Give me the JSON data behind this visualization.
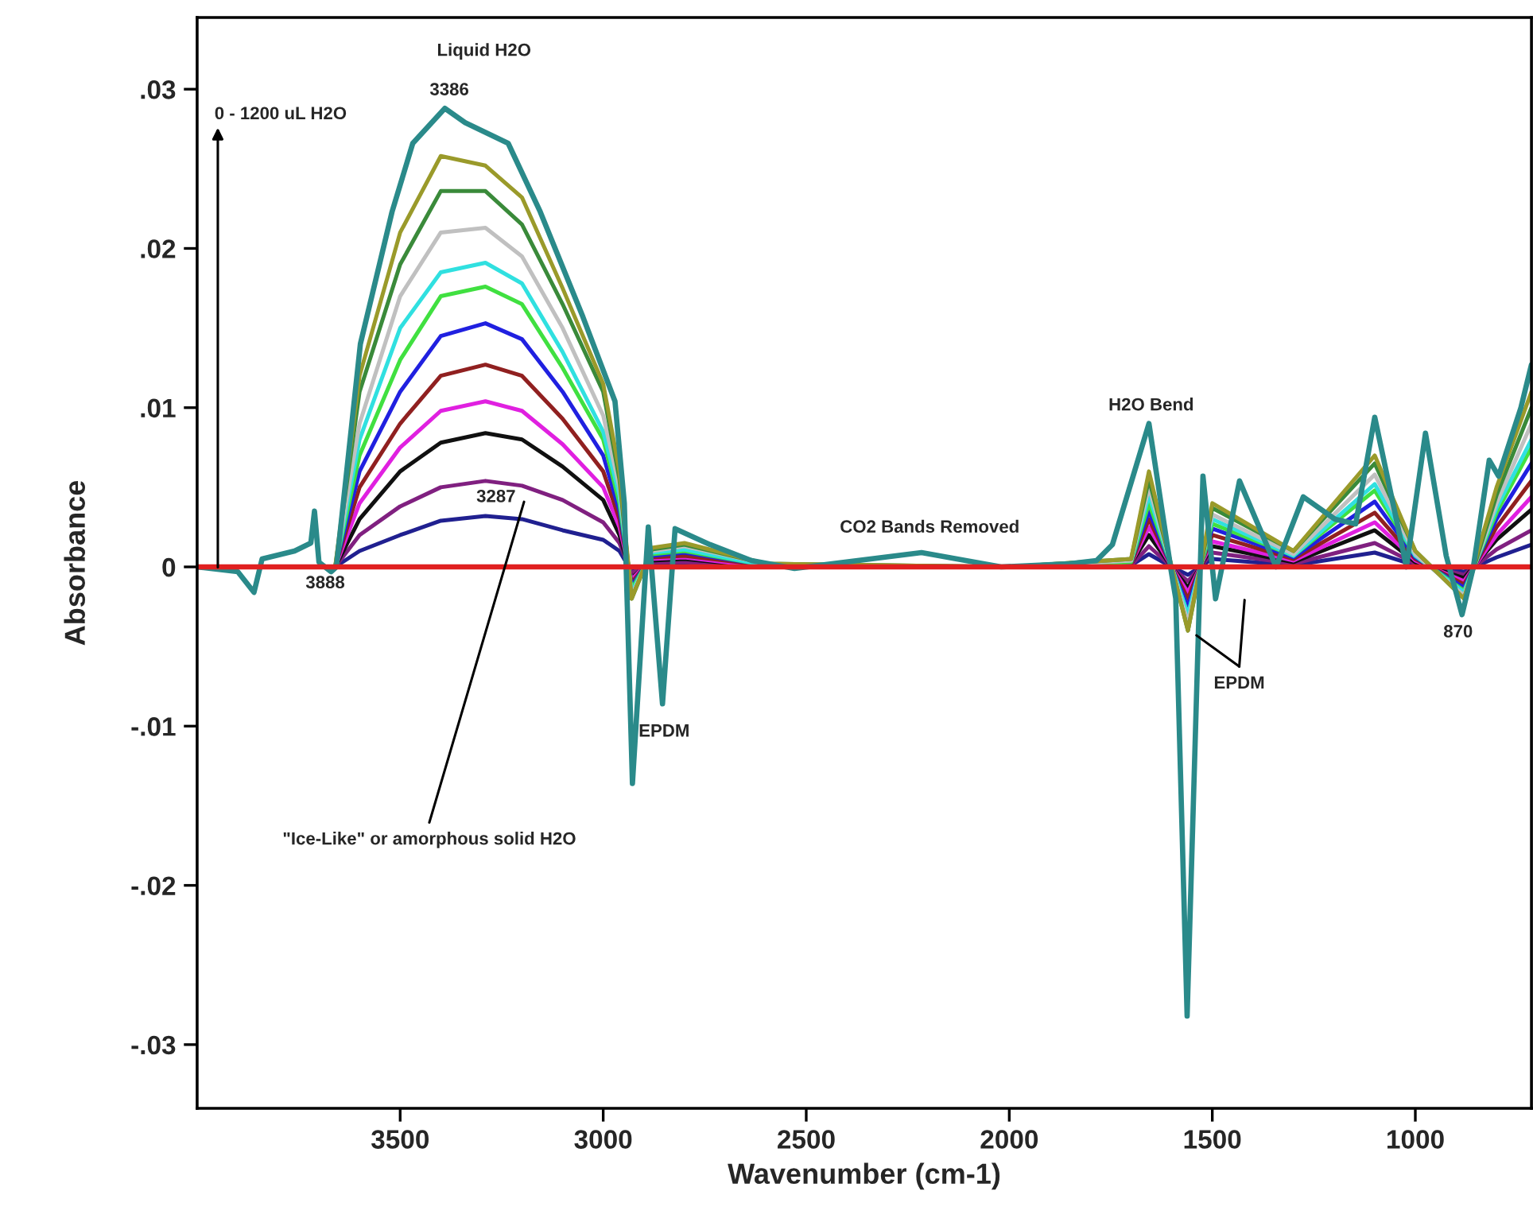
{
  "chart_data": {
    "type": "line",
    "xlabel": "Wavenumber (cm-1)",
    "ylabel": "Absorbance",
    "xlim": [
      4000,
      714
    ],
    "ylim": [
      -0.034,
      0.0345
    ],
    "xticks": [
      3500,
      3000,
      2500,
      2000,
      1500,
      1000
    ],
    "yticks": [
      {
        "value": -0.03,
        "label": "-.03"
      },
      {
        "value": -0.02,
        "label": "-.02"
      },
      {
        "value": -0.01,
        "label": "-.01"
      },
      {
        "value": 0,
        "label": "0"
      },
      {
        "value": 0.01,
        "label": ".01"
      },
      {
        "value": 0.02,
        "label": ".02"
      },
      {
        "value": 0.03,
        "label": ".03"
      }
    ],
    "grid": false,
    "legend": false,
    "marker": "none",
    "line_style": "solid",
    "x": [
      3660,
      3600,
      3500,
      3400,
      3290,
      3200,
      3100,
      3000,
      2960,
      2930,
      2880,
      2800,
      2600,
      2000,
      1700,
      1656,
      1600,
      1560,
      1500,
      1300,
      1100,
      1000,
      880,
      800,
      714
    ],
    "series": [
      {
        "color": "#202090",
        "values": [
          0,
          0.001,
          0.002,
          0.0029,
          0.0032,
          0.003,
          0.0023,
          0.0017,
          0.001,
          -0.0003,
          0.0002,
          0.0002,
          0,
          0,
          0.0001,
          0.0008,
          0,
          -0.0005,
          0.0005,
          0.0001,
          0.0009,
          0.0001,
          -0.0003,
          0.0006,
          0.0014
        ]
      },
      {
        "color": "#802080",
        "values": [
          0,
          0.002,
          0.0038,
          0.005,
          0.0054,
          0.0051,
          0.0042,
          0.0028,
          0.0015,
          -0.0004,
          0.0003,
          0.0003,
          0,
          0,
          0.0001,
          0.0013,
          0,
          -0.0009,
          0.0009,
          0.0002,
          0.0015,
          0.0002,
          -0.0005,
          0.0011,
          0.0023
        ]
      },
      {
        "color": "#101010",
        "values": [
          0,
          0.003,
          0.006,
          0.0078,
          0.0084,
          0.008,
          0.0063,
          0.0042,
          0.002,
          -0.0007,
          0.0004,
          0.0005,
          0,
          0,
          0.0002,
          0.002,
          0,
          -0.0013,
          0.0013,
          0.0003,
          0.0023,
          0.0003,
          -0.0007,
          0.0017,
          0.0036
        ]
      },
      {
        "color": "#e020e0",
        "values": [
          0,
          0.004,
          0.0075,
          0.0098,
          0.0104,
          0.0098,
          0.0077,
          0.005,
          0.0025,
          -0.0008,
          0.0005,
          0.0006,
          0,
          0,
          0.0002,
          0.0025,
          0,
          -0.0016,
          0.0016,
          0.0004,
          0.0028,
          0.0004,
          -0.0009,
          0.002,
          0.0044
        ]
      },
      {
        "color": "#902020",
        "values": [
          0,
          0.005,
          0.009,
          0.012,
          0.0127,
          0.012,
          0.0093,
          0.006,
          0.003,
          -0.001,
          0.0006,
          0.0007,
          0.0001,
          0,
          0.0002,
          0.003,
          0,
          -0.002,
          0.002,
          0.0005,
          0.0034,
          0.0005,
          -0.0011,
          0.0025,
          0.0054
        ]
      },
      {
        "color": "#2020e0",
        "values": [
          0,
          0.006,
          0.011,
          0.0145,
          0.0153,
          0.0143,
          0.011,
          0.007,
          0.0035,
          -0.0012,
          0.0007,
          0.0009,
          0.0001,
          0,
          0.0003,
          0.0035,
          0,
          -0.0025,
          0.0024,
          0.0006,
          0.0041,
          0.0006,
          -0.0013,
          0.003,
          0.0065
        ]
      },
      {
        "color": "#40e040",
        "values": [
          0,
          0.007,
          0.013,
          0.017,
          0.0176,
          0.0165,
          0.0125,
          0.008,
          0.004,
          -0.0014,
          0.0008,
          0.001,
          0.0001,
          0,
          0.0003,
          0.004,
          0,
          -0.003,
          0.0027,
          0.0007,
          0.0048,
          0.0007,
          -0.0015,
          0.0034,
          0.0075
        ]
      },
      {
        "color": "#30e0e0",
        "values": [
          0,
          0.008,
          0.015,
          0.0185,
          0.0191,
          0.0178,
          0.0135,
          0.0085,
          0.0045,
          -0.0016,
          0.0009,
          0.0011,
          0.0001,
          0,
          0.0004,
          0.0045,
          0,
          -0.003,
          0.003,
          0.0007,
          0.0052,
          0.0007,
          -0.0016,
          0.0037,
          0.008
        ]
      },
      {
        "color": "#c0c0c0",
        "values": [
          0,
          0.009,
          0.017,
          0.021,
          0.0213,
          0.0195,
          0.015,
          0.0095,
          0.005,
          -0.0018,
          0.001,
          0.0013,
          0.0002,
          0,
          0.0004,
          0.005,
          0,
          -0.0035,
          0.0033,
          0.0008,
          0.0058,
          0.0008,
          -0.0018,
          0.004,
          0.009
        ]
      },
      {
        "color": "#3a8a3a",
        "values": [
          0,
          0.011,
          0.019,
          0.0236,
          0.0236,
          0.0215,
          0.0165,
          0.011,
          0.0055,
          -0.002,
          0.0011,
          0.0014,
          0.0002,
          0,
          0.0005,
          0.0055,
          0,
          -0.004,
          0.0037,
          0.001,
          0.0065,
          0.001,
          -0.002,
          0.0045,
          0.01
        ]
      },
      {
        "color": "#9a9a2a",
        "values": [
          0,
          0.012,
          0.021,
          0.0258,
          0.0252,
          0.0232,
          0.0175,
          0.0115,
          0.006,
          -0.002,
          0.0012,
          0.0015,
          0.0002,
          0,
          0.0005,
          0.006,
          0,
          -0.004,
          0.004,
          0.001,
          0.007,
          0.001,
          -0.002,
          0.005,
          0.011
        ]
      },
      {
        "color": "#2a8a8a",
        "x": [
          4000,
          3900,
          3860,
          3840,
          3760,
          3720,
          3711,
          3700,
          3670,
          3657,
          3598,
          3520,
          3469,
          3390,
          3340,
          3234,
          3155,
          3050,
          2971,
          2948,
          2928,
          2889,
          2854,
          2823,
          2737,
          2635,
          2529,
          2216,
          2020,
          1852,
          1785,
          1746,
          1656,
          1601,
          1590,
          1562,
          1523,
          1492,
          1433,
          1343,
          1276,
          1198,
          1147,
          1100,
          1022,
          975,
          924,
          885,
          857,
          818,
          795,
          740,
          714
        ],
        "values": [
          0,
          -0.0003,
          -0.0016,
          0.0005,
          0.001,
          0.0015,
          0.0035,
          0.0003,
          -0.0003,
          0,
          0.014,
          0.0223,
          0.0266,
          0.0288,
          0.0279,
          0.0266,
          0.0223,
          0.0157,
          0.0104,
          0.004,
          -0.0136,
          0.0025,
          -0.0086,
          0.0024,
          0.0014,
          0.0004,
          -0.0001,
          0.0009,
          0,
          0.0002,
          0.0004,
          0.0014,
          0.009,
          -0.0003,
          -0.002,
          -0.0282,
          0.0057,
          -0.002,
          0.0054,
          0,
          0.0044,
          0.003,
          0.0027,
          0.0094,
          0,
          0.0084,
          0.0007,
          -0.003,
          0,
          0.0067,
          0.0057,
          0.01,
          0.0127
        ]
      },
      {
        "color": "#e02020",
        "x": [
          4000,
          714
        ],
        "values": [
          0,
          0
        ]
      }
    ],
    "annotations": [
      "Liquid H2O",
      "3386",
      "0 - 1200 uL H2O",
      "3888",
      "3287",
      "\"Ice-Like\" or amorphous solid H2O",
      "EPDM",
      "CO2 Bands Removed",
      "H2O Bend",
      {
        "text": "EPDM",
        "x": 1539,
        "y": -0.0043
      },
      "870"
    ]
  }
}
